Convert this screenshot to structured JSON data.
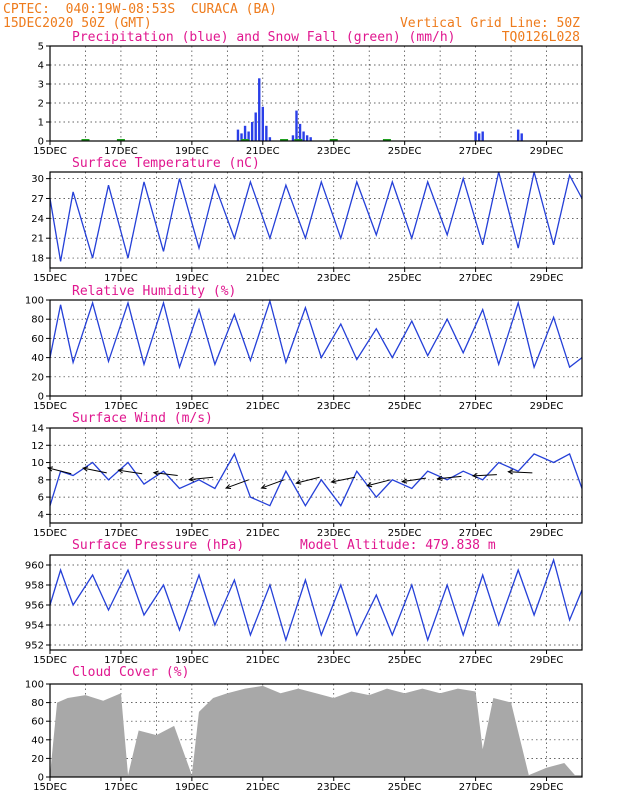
{
  "header": {
    "line1_left": "CPTEC:  040:19W-08:53S  CURACA (BA)",
    "line2_left": "15DEC2020 50Z (GMT)",
    "line2_right": "Vertical Grid Line: 50Z",
    "line3_right": "TQ0126L028"
  },
  "panel_titles": {
    "precip": "Precipitation (blue) and Snow Fall (green) (mm/h)",
    "temp": "Surface Temperature (nC)",
    "rh": "Relative Humidity (%)",
    "wind": "Surface Wind (m/s)",
    "pressure": "Surface Pressure (hPa)",
    "altitude": "Model Altitude: 479.838 m",
    "cloud": "Cloud Cover (%)"
  },
  "x_tick_labels": [
    "15DEC",
    "17DEC",
    "19DEC",
    "21DEC",
    "23DEC",
    "25DEC",
    "27DEC",
    "29DEC"
  ],
  "colors": {
    "header": "#ee7b1c",
    "title": "#e0178f",
    "series": "#2540d8",
    "snow": "#1fa01f",
    "cloud": "#a8a8a8"
  },
  "chart_data": [
    {
      "type": "bar",
      "title": "Precipitation (blue) and Snow Fall (green) (mm/h)",
      "x_range_days": [
        15,
        30
      ],
      "ylim": [
        0,
        5
      ],
      "yticks": [
        0,
        1,
        2,
        3,
        4,
        5
      ],
      "x": [
        20.3,
        20.4,
        20.5,
        20.6,
        20.7,
        20.8,
        20.9,
        21.0,
        21.1,
        21.2,
        21.85,
        21.95,
        22.05,
        22.15,
        22.25,
        22.35,
        27.0,
        27.1,
        27.2,
        28.2,
        28.3
      ],
      "values": [
        0.6,
        0.4,
        0.8,
        0.5,
        1.0,
        1.5,
        3.3,
        1.8,
        0.8,
        0.2,
        0.3,
        1.6,
        0.9,
        0.5,
        0.3,
        0.2,
        0.5,
        0.4,
        0.5,
        0.6,
        0.4
      ],
      "snow_x": [
        16.0,
        17.0,
        20.5,
        21.6,
        22.0,
        23.0,
        24.5
      ],
      "snow_values": [
        0.05,
        0.05,
        0.05,
        0.05,
        0.05,
        0.05,
        0.05
      ],
      "grid": true
    },
    {
      "type": "line",
      "title": "Surface Temperature (nC)",
      "ylim": [
        16.5,
        31
      ],
      "yticks": [
        18,
        21,
        24,
        27,
        30
      ],
      "x": [
        15.0,
        15.3,
        15.65,
        16.2,
        16.65,
        17.2,
        17.65,
        18.2,
        18.65,
        19.2,
        19.65,
        20.2,
        20.65,
        21.2,
        21.65,
        22.2,
        22.65,
        23.2,
        23.65,
        24.2,
        24.65,
        25.2,
        25.65,
        26.2,
        26.65,
        27.2,
        27.65,
        28.2,
        28.65,
        29.2,
        29.65,
        30.0
      ],
      "values": [
        27,
        17.5,
        28,
        18,
        29,
        18,
        29.5,
        19,
        30,
        19.5,
        29,
        21,
        29.5,
        21,
        29,
        21,
        29.5,
        21,
        29.5,
        21.5,
        29.5,
        21,
        29.5,
        21.5,
        30,
        20,
        31,
        19.5,
        31,
        20,
        30.5,
        27
      ],
      "grid": true
    },
    {
      "type": "line",
      "title": "Relative Humidity (%)",
      "ylim": [
        0,
        100
      ],
      "yticks": [
        0,
        20,
        40,
        60,
        80,
        100
      ],
      "x": [
        15.0,
        15.3,
        15.65,
        16.2,
        16.65,
        17.2,
        17.65,
        18.2,
        18.65,
        19.2,
        19.65,
        20.2,
        20.65,
        21.2,
        21.65,
        22.2,
        22.65,
        23.2,
        23.65,
        24.2,
        24.65,
        25.2,
        25.65,
        26.2,
        26.65,
        27.2,
        27.65,
        28.2,
        28.65,
        29.2,
        29.65,
        30.0
      ],
      "values": [
        40,
        95,
        35,
        97,
        36,
        97,
        33,
        97,
        30,
        90,
        33,
        85,
        37,
        99,
        35,
        92,
        40,
        75,
        38,
        70,
        40,
        78,
        42,
        80,
        45,
        90,
        33,
        97,
        30,
        82,
        30,
        40
      ],
      "grid": true
    },
    {
      "type": "line",
      "title": "Surface Wind (m/s)",
      "ylim": [
        3,
        14
      ],
      "yticks": [
        4,
        6,
        8,
        10,
        12,
        14
      ],
      "x": [
        15.0,
        15.3,
        15.65,
        16.2,
        16.65,
        17.2,
        17.65,
        18.2,
        18.65,
        19.2,
        19.65,
        20.2,
        20.65,
        21.2,
        21.65,
        22.2,
        22.65,
        23.2,
        23.65,
        24.2,
        24.65,
        25.2,
        25.65,
        26.2,
        26.65,
        27.2,
        27.65,
        28.2,
        28.65,
        29.2,
        29.65,
        30.0
      ],
      "values": [
        5,
        9,
        8.5,
        10,
        8,
        10,
        7.5,
        9,
        7,
        8,
        7,
        11,
        6,
        5,
        9,
        5,
        8,
        5,
        9,
        6,
        8,
        7,
        9,
        8,
        9,
        8,
        10,
        9,
        11,
        10,
        11,
        7
      ],
      "wind_arrows": [
        {
          "day": 15.6,
          "speed": 8.7,
          "dir": 0.25
        },
        {
          "day": 16.6,
          "speed": 8.8,
          "dir": 0.2
        },
        {
          "day": 17.6,
          "speed": 8.7,
          "dir": 0.15
        },
        {
          "day": 18.6,
          "speed": 8.5,
          "dir": 0.12
        },
        {
          "day": 19.6,
          "speed": 8.3,
          "dir": -0.1
        },
        {
          "day": 20.6,
          "speed": 8.0,
          "dir": -0.35
        },
        {
          "day": 21.6,
          "speed": 8.0,
          "dir": -0.35
        },
        {
          "day": 22.6,
          "speed": 8.3,
          "dir": -0.25
        },
        {
          "day": 23.6,
          "speed": 8.3,
          "dir": -0.2
        },
        {
          "day": 24.6,
          "speed": 8.0,
          "dir": -0.25
        },
        {
          "day": 25.6,
          "speed": 8.2,
          "dir": -0.15
        },
        {
          "day": 26.6,
          "speed": 8.4,
          "dir": -0.1
        },
        {
          "day": 27.6,
          "speed": 8.6,
          "dir": -0.05
        },
        {
          "day": 28.6,
          "speed": 8.8,
          "dir": 0.05
        }
      ],
      "grid": true
    },
    {
      "type": "line",
      "title": "Surface Pressure (hPa)",
      "ylim": [
        951.5,
        961
      ],
      "yticks": [
        952,
        954,
        956,
        958,
        960
      ],
      "x": [
        15.0,
        15.3,
        15.65,
        16.2,
        16.65,
        17.2,
        17.65,
        18.2,
        18.65,
        19.2,
        19.65,
        20.2,
        20.65,
        21.2,
        21.65,
        22.2,
        22.65,
        23.2,
        23.65,
        24.2,
        24.65,
        25.2,
        25.65,
        26.2,
        26.65,
        27.2,
        27.65,
        28.2,
        28.65,
        29.2,
        29.65,
        30.0
      ],
      "values": [
        956,
        959.5,
        956,
        959,
        955.5,
        959.5,
        955,
        958,
        953.5,
        959,
        954,
        958.5,
        953,
        958,
        952.5,
        958.5,
        953,
        958,
        953,
        957,
        953,
        958,
        952.5,
        958,
        953,
        959,
        954,
        959.5,
        955,
        960.5,
        954.5,
        957.5
      ],
      "grid": true
    },
    {
      "type": "area",
      "title": "Cloud Cover (%)",
      "ylim": [
        0,
        100
      ],
      "yticks": [
        0,
        20,
        40,
        60,
        80,
        100
      ],
      "x": [
        15.0,
        15.2,
        15.5,
        16.0,
        16.5,
        17.0,
        17.2,
        17.5,
        18.0,
        18.5,
        19.0,
        19.2,
        19.6,
        20.0,
        20.5,
        21.0,
        21.5,
        22.0,
        22.5,
        23.0,
        23.5,
        24.0,
        24.5,
        25.0,
        25.5,
        26.0,
        26.5,
        27.0,
        27.2,
        27.5,
        28.0,
        28.5,
        29.0,
        29.5,
        29.8,
        30.0
      ],
      "values": [
        2,
        80,
        85,
        88,
        82,
        90,
        2,
        50,
        45,
        55,
        2,
        70,
        85,
        90,
        95,
        98,
        90,
        95,
        90,
        85,
        92,
        88,
        95,
        90,
        95,
        90,
        95,
        92,
        30,
        85,
        80,
        2,
        10,
        15,
        2,
        2
      ],
      "grid": true
    }
  ]
}
